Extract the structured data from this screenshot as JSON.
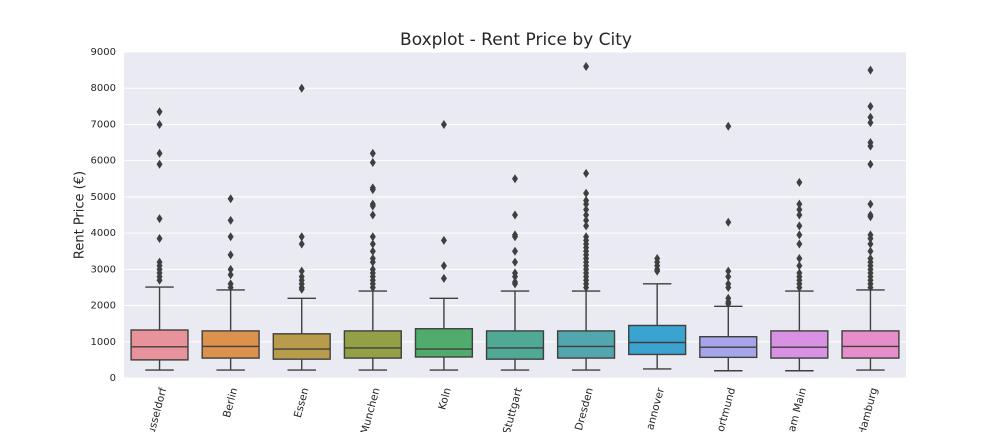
{
  "chart_data": {
    "type": "box",
    "title": "Boxplot - Rent Price by City",
    "ylabel": "Rent Price (€)",
    "categories": [
      "usseldorf",
      "Berlin",
      "Essen",
      "Munchen",
      "Koln",
      "Stuttgart",
      "Dresden",
      "annover",
      "ortmund",
      "am Main",
      "Hamburg"
    ],
    "ylim": [
      0,
      9000
    ],
    "yticks": [
      0,
      1000,
      2000,
      3000,
      4000,
      5000,
      6000,
      7000,
      8000,
      9000
    ],
    "grid": true,
    "boxes": [
      {
        "color": "#e8929c",
        "min": 220,
        "q1": 500,
        "median": 860,
        "q3": 1325,
        "max": 2510,
        "outliers": [
          7350,
          7000,
          6200,
          5900,
          4400,
          3850,
          3200,
          3100,
          3000,
          2900,
          2800,
          2700
        ]
      },
      {
        "color": "#dc914d",
        "min": 220,
        "q1": 550,
        "median": 870,
        "q3": 1300,
        "max": 2430,
        "outliers": [
          4950,
          4350,
          3900,
          3400,
          3000,
          2850,
          2600,
          2500
        ]
      },
      {
        "color": "#b89c4b",
        "min": 220,
        "q1": 520,
        "median": 800,
        "q3": 1220,
        "max": 2200,
        "outliers": [
          8000,
          3900,
          3700,
          2950,
          2800,
          2700,
          2600,
          2500,
          2450
        ]
      },
      {
        "color": "#93a045",
        "min": 220,
        "q1": 550,
        "median": 830,
        "q3": 1300,
        "max": 2400,
        "outliers": [
          6200,
          5950,
          5250,
          5200,
          4800,
          4750,
          4500,
          3900,
          3700,
          3500,
          3300,
          3200,
          3000,
          2900,
          2800,
          2700,
          2600,
          2500
        ]
      },
      {
        "color": "#50ac6c",
        "min": 220,
        "q1": 580,
        "median": 800,
        "q3": 1360,
        "max": 2200,
        "outliers": [
          7000,
          3800,
          3100,
          2750
        ]
      },
      {
        "color": "#4fa994",
        "min": 220,
        "q1": 520,
        "median": 830,
        "q3": 1300,
        "max": 2400,
        "outliers": [
          5500,
          4500,
          3950,
          3900,
          3500,
          3200,
          2900,
          2800,
          2650,
          2600
        ]
      },
      {
        "color": "#52a6ad",
        "min": 220,
        "q1": 550,
        "median": 870,
        "q3": 1300,
        "max": 2400,
        "outliers": [
          8600,
          5650,
          5100,
          4900,
          4800,
          4650,
          4500,
          4350,
          4200,
          3900,
          3800,
          3700,
          3600,
          3500,
          3400,
          3300,
          3200,
          3100,
          3000,
          2900,
          2800,
          2700,
          2600,
          2500
        ]
      },
      {
        "color": "#3ba3d0",
        "min": 250,
        "q1": 650,
        "median": 980,
        "q3": 1450,
        "max": 2600,
        "outliers": [
          3300,
          3200,
          3100,
          3000,
          2950
        ]
      },
      {
        "color": "#a5a6ea",
        "min": 200,
        "q1": 570,
        "median": 850,
        "q3": 1140,
        "max": 1980,
        "outliers": [
          6950,
          4300,
          2950,
          2800,
          2600,
          2500,
          2200,
          2100,
          2050
        ]
      },
      {
        "color": "#d891e3",
        "min": 200,
        "q1": 550,
        "median": 850,
        "q3": 1300,
        "max": 2400,
        "outliers": [
          5400,
          4800,
          4650,
          4500,
          4200,
          3950,
          3700,
          3300,
          3100,
          2900,
          2800,
          2700,
          2600,
          2500
        ]
      },
      {
        "color": "#e68ec9",
        "min": 220,
        "q1": 550,
        "median": 870,
        "q3": 1300,
        "max": 2430,
        "outliers": [
          8500,
          7500,
          7200,
          7050,
          6500,
          6400,
          5900,
          4800,
          4500,
          4450,
          3950,
          3850,
          3700,
          3500,
          3300,
          3200,
          3100,
          3000,
          2900,
          2800,
          2700,
          2600,
          2500
        ]
      }
    ]
  }
}
